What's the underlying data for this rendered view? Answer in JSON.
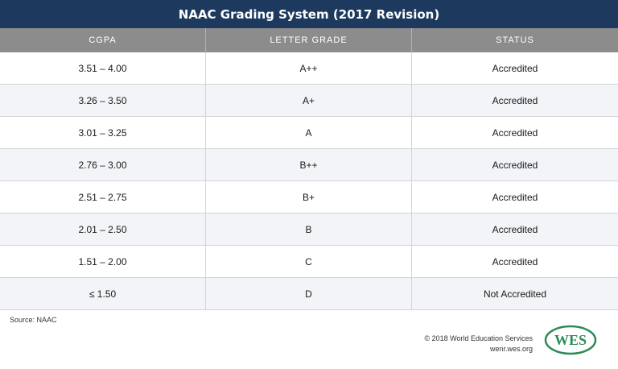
{
  "title": "NAAC Grading System (2017 Revision)",
  "headers": [
    "CGPA",
    "LETTER GRADE",
    "STATUS"
  ],
  "rows": [
    {
      "cgpa": "3.51 – 4.00",
      "grade": "A++",
      "status": "Accredited"
    },
    {
      "cgpa": "3.26 – 3.50",
      "grade": "A+",
      "status": "Accredited"
    },
    {
      "cgpa": "3.01 – 3.25",
      "grade": "A",
      "status": "Accredited"
    },
    {
      "cgpa": "2.76 – 3.00",
      "grade": "B++",
      "status": "Accredited"
    },
    {
      "cgpa": "2.51 – 2.75",
      "grade": "B+",
      "status": "Accredited"
    },
    {
      "cgpa": "2.01 – 2.50",
      "grade": "B",
      "status": "Accredited"
    },
    {
      "cgpa": "1.51 – 2.00",
      "grade": "C",
      "status": "Accredited"
    },
    {
      "cgpa": "≤ 1.50",
      "grade": "D",
      "status": "Not Accredited"
    }
  ],
  "source": "Source: NAAC",
  "footer": {
    "copyright": "© 2018 World Education Services",
    "url": "wenr.wes.org"
  },
  "logo_text": "WES",
  "colors": {
    "title_bg": "#1d3a5e",
    "header_bg": "#8c8c8c",
    "alt_row_bg": "#f3f4f8",
    "logo_green": "#2e8b57"
  }
}
